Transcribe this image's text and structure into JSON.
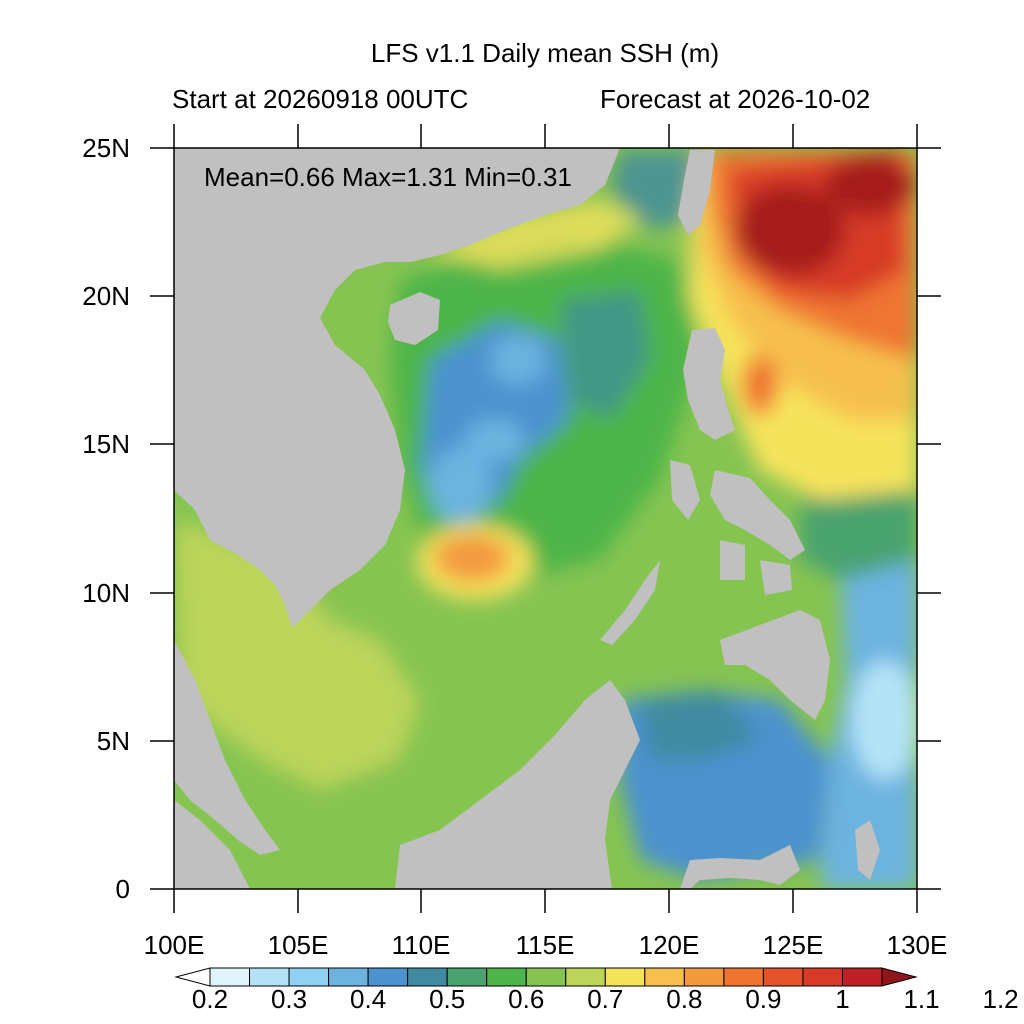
{
  "title": "LFS v1.1 Daily mean SSH (m)",
  "start_label": "Start at 20260918 00UTC",
  "forecast_label": "Forecast at 2026-10-02",
  "stats": "Mean=0.66  Max=1.31  Min=0.31",
  "lat_labels": [
    "25N",
    "20N",
    "15N",
    "10N",
    "5N",
    "0"
  ],
  "lon_labels": [
    "100E",
    "105E",
    "110E",
    "115E",
    "120E",
    "125E",
    "130E"
  ],
  "colorbar": {
    "labels": [
      "0.2",
      "0.3",
      "0.4",
      "0.5",
      "0.6",
      "0.7",
      "0.8",
      "0.9",
      "1",
      "1.1",
      "1.2"
    ],
    "colors": [
      "#dff3fb",
      "#b4e3f7",
      "#8fd1f3",
      "#6cb3e0",
      "#4c92cf",
      "#3f8aa0",
      "#4aa36e",
      "#4db54a",
      "#86c451",
      "#bcd45a",
      "#f6e35c",
      "#f6bf4e",
      "#f39a3f",
      "#ef7430",
      "#e5532a",
      "#d73a27",
      "#bf2025",
      "#a61b1f",
      "#8f161a"
    ]
  },
  "colors": {
    "land": "#c0c0c0",
    "ocean_base": "#86c451"
  }
}
